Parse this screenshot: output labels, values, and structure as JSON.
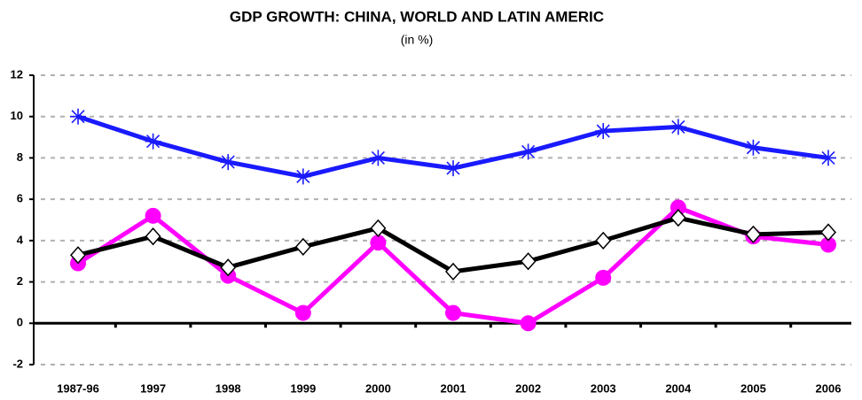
{
  "chart_data": {
    "type": "line",
    "title": "GDP GROWTH: CHINA, WORLD AND LATIN AMERIC",
    "subtitle": "(in %)",
    "categories": [
      "1987-96",
      "1997",
      "1998",
      "1999",
      "2000",
      "2001",
      "2002",
      "2003",
      "2004",
      "2005",
      "2006"
    ],
    "series": [
      {
        "color": "#1a1aff",
        "marker": "star",
        "values": [
          10.0,
          8.8,
          7.8,
          7.1,
          8.0,
          7.5,
          8.3,
          9.3,
          9.5,
          8.5,
          8.0
        ]
      },
      {
        "color": "#ff00ff",
        "marker": "circle",
        "values": [
          2.9,
          5.2,
          2.3,
          0.5,
          3.9,
          0.5,
          0.0,
          2.2,
          5.6,
          4.2,
          3.8
        ]
      },
      {
        "color": "#000000",
        "marker": "diamond",
        "values": [
          3.3,
          4.2,
          2.7,
          3.7,
          4.6,
          2.5,
          3.0,
          4.0,
          5.1,
          4.3,
          4.4
        ]
      }
    ],
    "ylim": [
      -2,
      12
    ],
    "yticks": [
      -2,
      0,
      2,
      4,
      6,
      8,
      10,
      12
    ],
    "grid": true
  }
}
